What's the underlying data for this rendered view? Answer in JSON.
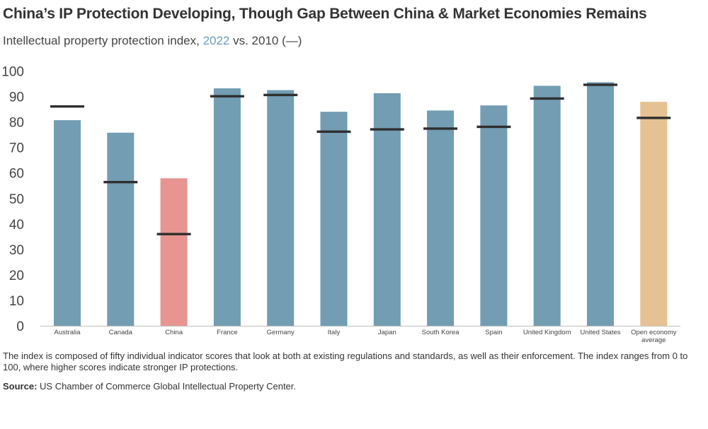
{
  "title": "China’s IP Protection Developing, Though Gap Between China & Market Economies Remains",
  "subtitle": {
    "before": "Intellectual property protection index, ",
    "highlight": "2022",
    "after": " vs. 2010 (—)"
  },
  "note": "The index is composed of fifty individual indicator scores that look at both at existing regulations and standards, as well as their enforcement. The index ranges from 0 to 100, where higher scores indicate stronger IP protections.",
  "source": {
    "label": "Source:",
    "text": " US Chamber of Commerce Global Intellectual Property Center."
  },
  "chart_data": {
    "type": "bar",
    "title": "China’s IP Protection Developing, Though Gap Between China & Market Economies Remains",
    "categories": [
      "Australia",
      "Canada",
      "China",
      "France",
      "Germany",
      "Italy",
      "Japan",
      "South Korea",
      "Spain",
      "United Kingdom",
      "United States",
      "Open economy average"
    ],
    "series": [
      {
        "name": "2022",
        "values": [
          80.7,
          75.8,
          57.9,
          93.2,
          92.5,
          84.0,
          91.3,
          84.5,
          86.5,
          94.2,
          95.6,
          87.9
        ]
      },
      {
        "name": "2010",
        "values": [
          86.1,
          56.4,
          36.0,
          90.1,
          90.6,
          76.2,
          77.1,
          77.4,
          78.1,
          89.2,
          94.6,
          81.6
        ]
      }
    ],
    "ylim": [
      0,
      100
    ],
    "yticks": [
      0,
      10,
      20,
      30,
      40,
      50,
      60,
      70,
      80,
      90,
      100
    ],
    "grid": false,
    "colors": {
      "default": "#729db3",
      "china": "#e69591",
      "average": "#e6c193",
      "marker_2010": "#2f2f2f"
    }
  }
}
